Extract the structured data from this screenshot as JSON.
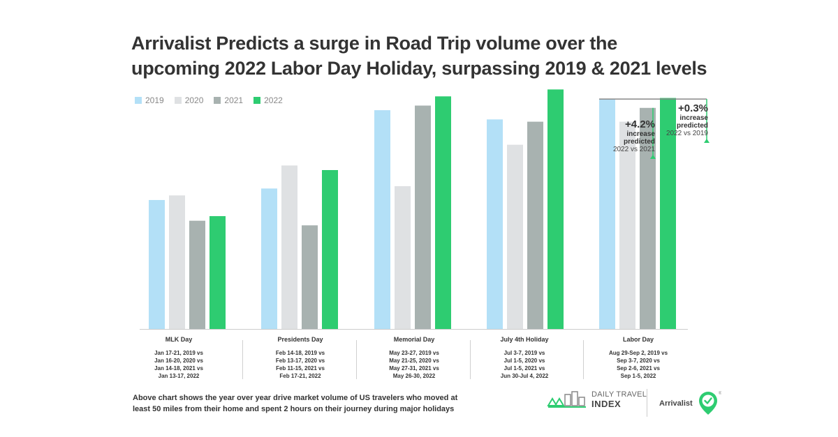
{
  "title": {
    "line1": "Arrivalist Predicts a surge in Road Trip volume over the",
    "line2": "upcoming 2022 Labor Day Holiday, surpassing 2019 & 2021 levels"
  },
  "colors": {
    "2019": "#b3e0f7",
    "2020": "#dfe1e3",
    "2021": "#a8b2b0",
    "2022": "#2ecc71",
    "arrow": "#2ecc71",
    "baseline": "#cccccc"
  },
  "chart_data": {
    "type": "bar",
    "title": "Arrivalist Predicts a surge in Road Trip volume over the upcoming 2022 Labor Day Holiday, surpassing 2019 & 2021 levels",
    "xlabel": "",
    "ylabel": "",
    "ylim": [
      0,
      100
    ],
    "grid": false,
    "legend_position": "top-left",
    "categories": [
      "MLK Day",
      "Presidents Day",
      "Memorial Day",
      "July 4th Holiday",
      "Labor Day"
    ],
    "series": [
      {
        "name": "2019",
        "values": [
          56,
          61,
          95,
          91,
          100
        ]
      },
      {
        "name": "2020",
        "values": [
          58,
          71,
          62,
          80,
          90
        ]
      },
      {
        "name": "2021",
        "values": [
          47,
          45,
          97,
          90,
          96
        ]
      },
      {
        "name": "2022",
        "values": [
          49,
          69,
          101,
          104,
          100.3
        ]
      }
    ],
    "annotations": [
      {
        "pct": "+4.2%",
        "word1": "increase",
        "word2": "predicted",
        "compare": "2022 vs 2021"
      },
      {
        "pct": "+0.3%",
        "word1": "increase",
        "word2": "predicted",
        "compare": "2022 vs 2019"
      }
    ]
  },
  "date_ranges": [
    [
      "Jan 17-21, 2019 vs",
      "Jan 16-20, 2020 vs",
      "Jan 14-18, 2021 vs",
      "Jan 13-17, 2022"
    ],
    [
      "Feb 14-18, 2019 vs",
      "Feb 13-17, 2020 vs",
      "Feb 11-15, 2021 vs",
      "Feb 17-21, 2022"
    ],
    [
      "May 23-27, 2019 vs",
      "May 21-25, 2020 vs",
      "May 27-31, 2021 vs",
      "May 26-30, 2022"
    ],
    [
      "Jul 3-7, 2019 vs",
      "Jul 1-5, 2020 vs",
      "Jul 1-5, 2021 vs",
      "Jun 30-Jul 4, 2022"
    ],
    [
      "Aug 29-Sep 2, 2019 vs",
      "Sep 3-7, 2020 vs",
      "Sep 2-6, 2021 vs",
      "Sep 1-5, 2022"
    ]
  ],
  "footnote": {
    "line1": "Above chart shows the year over year drive market volume of US travelers who moved at",
    "line2": "least 50 miles from their home and spent 2 hours on their journey during major holidays"
  },
  "logos": {
    "dti_line1": "DAILY TRAVEL",
    "dti_line2": "INDEX",
    "arrivalist": "Arrivalist",
    "registered": "®"
  }
}
